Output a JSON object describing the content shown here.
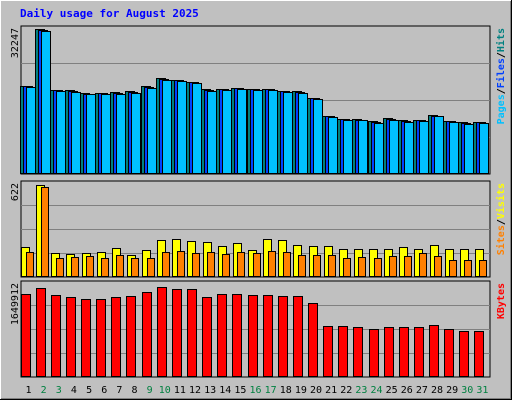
{
  "chart_data": {
    "type": "bar",
    "title": "Daily usage for August 2025",
    "days": [
      1,
      2,
      3,
      4,
      5,
      6,
      7,
      8,
      9,
      10,
      11,
      12,
      13,
      14,
      15,
      16,
      17,
      18,
      19,
      20,
      21,
      22,
      23,
      24,
      25,
      26,
      27,
      28,
      29,
      30,
      31
    ],
    "weekend_days": [
      2,
      3,
      9,
      10,
      16,
      17,
      23,
      24,
      30,
      31
    ],
    "panels": [
      {
        "name": "top",
        "max_label": "32247",
        "ymax": 32247,
        "right_labels": [
          "Pages",
          "/",
          "Files",
          "/",
          "Hits"
        ],
        "right_colors": [
          "#00c0ff",
          "#000000",
          "#0040ff",
          "#000000",
          "#008080"
        ],
        "series": [
          {
            "name": "Hits",
            "color": "#008080",
            "values": [
              19600,
              32200,
              18700,
              18600,
              18000,
              18100,
              18200,
              18400,
              19500,
              21300,
              21000,
              20500,
              18800,
              19000,
              19200,
              18900,
              18900,
              18500,
              18400,
              17000,
              13000,
              12300,
              12200,
              11700,
              12400,
              11900,
              12000,
              13100,
              11800,
              11500,
              11600
            ]
          },
          {
            "name": "Files",
            "color": "#0040ff",
            "values": [
              19500,
              32100,
              18600,
              18500,
              17900,
              18000,
              18100,
              18300,
              19400,
              21200,
              20900,
              20400,
              18700,
              18900,
              19100,
              18800,
              18800,
              18400,
              18300,
              16900,
              12900,
              12200,
              12100,
              11600,
              12300,
              11800,
              11900,
              13000,
              11700,
              11400,
              11500
            ]
          },
          {
            "name": "Pages",
            "color": "#00c0ff",
            "values": [
              19300,
              31800,
              18400,
              18300,
              17700,
              17800,
              17900,
              18100,
              19200,
              21000,
              20700,
              20200,
              18500,
              18700,
              18900,
              18600,
              18600,
              18200,
              18100,
              16700,
              12700,
              12000,
              11900,
              11400,
              12100,
              11600,
              11700,
              12800,
              11500,
              11200,
              11300
            ]
          }
        ]
      },
      {
        "name": "middle",
        "max_label": "622",
        "ymax": 622,
        "right_labels": [
          "Sites",
          "/",
          "Visits"
        ],
        "right_colors": [
          "#ff8000",
          "#000000",
          "#ffff00"
        ],
        "series": [
          {
            "name": "Visits",
            "color": "#ffff00",
            "values": [
              200,
              615,
              160,
              155,
              160,
              165,
              195,
              145,
              180,
              250,
              255,
              240,
              235,
              205,
              225,
              180,
              255,
              250,
              215,
              210,
              205,
              190,
              185,
              190,
              190,
              200,
              190,
              215,
              190,
              190,
              190
            ]
          },
          {
            "name": "Sites",
            "color": "#ff8000",
            "values": [
              170,
              600,
              130,
              135,
              140,
              130,
              150,
              125,
              125,
              170,
              175,
              160,
              165,
              155,
              170,
              160,
              175,
              170,
              145,
              145,
              150,
              130,
              135,
              130,
              140,
              140,
              160,
              140,
              115,
              115,
              115
            ]
          }
        ]
      },
      {
        "name": "bottom",
        "max_label": "1649912",
        "ymax": 1649912,
        "right_labels": [
          "KBytes"
        ],
        "right_colors": [
          "#ff0000"
        ],
        "series": [
          {
            "name": "KBytes",
            "color": "#ff0000",
            "values": [
              1480000,
              1580000,
              1450000,
              1420000,
              1380000,
              1390000,
              1420000,
              1440000,
              1500000,
              1590000,
              1570000,
              1560000,
              1420000,
              1470000,
              1470000,
              1450000,
              1450000,
              1430000,
              1430000,
              1320000,
              900000,
              900000,
              880000,
              850000,
              880000,
              880000,
              880000,
              930000,
              850000,
              810000,
              820000
            ]
          }
        ]
      }
    ]
  }
}
